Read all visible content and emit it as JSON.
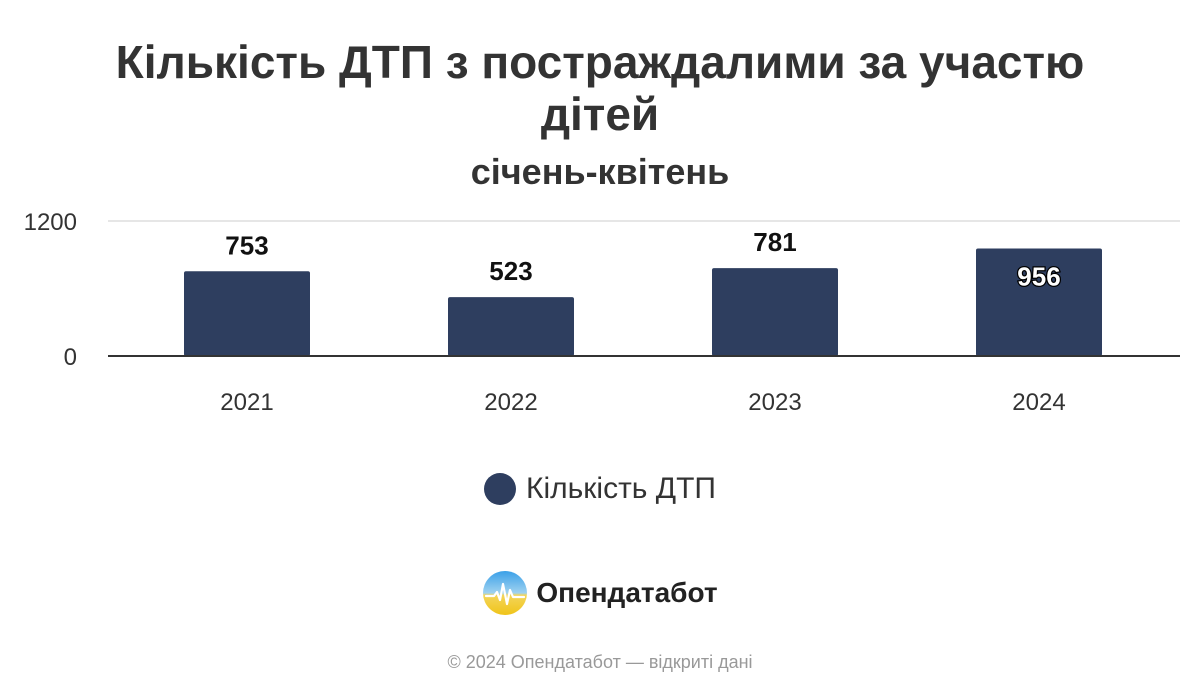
{
  "title": "Кількість ДТП з постраждалими за участю дітей",
  "subtitle": "січень-квітень",
  "colors": {
    "bar": "#2e3e5f",
    "text": "#333333",
    "grid": "#dddddd",
    "axis": "#333333",
    "footer": "#999999"
  },
  "chart_data": {
    "type": "bar",
    "title": "Кількість ДТП з постраждалими за участю дітей",
    "subtitle": "січень-квітень",
    "categories": [
      "2021",
      "2022",
      "2023",
      "2024"
    ],
    "series": [
      {
        "name": "Кількість ДТП",
        "values": [
          753,
          523,
          781,
          956
        ]
      }
    ],
    "y_ticks": [
      "0",
      "1200"
    ],
    "ylim": [
      0,
      1200
    ],
    "grid": true,
    "legend_position": "bottom"
  },
  "legend": {
    "label": "Кількість ДТП"
  },
  "brand": {
    "name": "Опендатабот",
    "logo_icon": "opendatabot-logo-icon"
  },
  "footer": {
    "text": "© 2024 Опендатабот — відкриті дані"
  }
}
